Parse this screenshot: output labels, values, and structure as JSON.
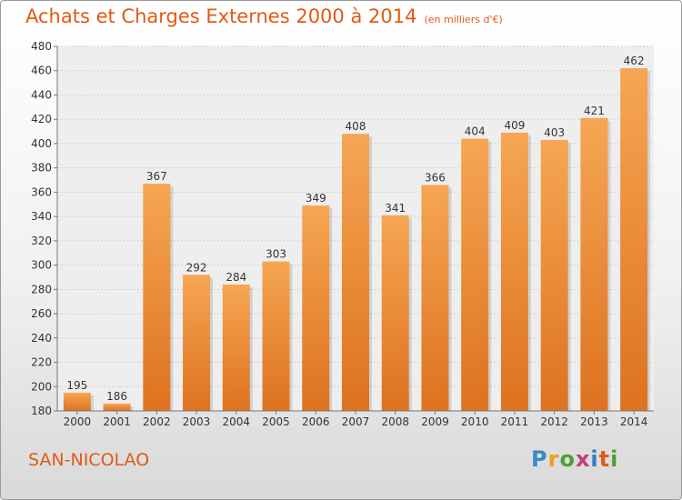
{
  "title": "Achats et Charges Externes 2000 à 2014",
  "subtitle": "(en milliers d'€)",
  "city": "SAN-NICOLAO",
  "logo": {
    "letters": [
      "P",
      "r",
      "o",
      "x",
      "i",
      "t",
      "i"
    ],
    "colors": [
      "#3a8ac6",
      "#e8a21c",
      "#4aa13a",
      "#c73a7c",
      "#2f7fc1",
      "#e05a14",
      "#4aa13a"
    ]
  },
  "colors": {
    "accent": "#e05a14",
    "bar_light": "#f6a653",
    "bar_dark": "#dd7220"
  },
  "chart_data": {
    "type": "bar",
    "title": "Achats et Charges Externes 2000 à 2014",
    "subtitle": "(en milliers d'€)",
    "categories": [
      "2000",
      "2001",
      "2002",
      "2003",
      "2004",
      "2005",
      "2006",
      "2007",
      "2008",
      "2009",
      "2010",
      "2011",
      "2012",
      "2013",
      "2014"
    ],
    "values": [
      195,
      186,
      367,
      292,
      284,
      303,
      349,
      408,
      341,
      366,
      404,
      409,
      403,
      421,
      462
    ],
    "ylim": [
      180,
      480
    ],
    "yticks": [
      180,
      200,
      220,
      240,
      260,
      280,
      300,
      320,
      340,
      360,
      380,
      400,
      420,
      440,
      460,
      480
    ],
    "grid": true,
    "xlabel": "",
    "ylabel": ""
  }
}
